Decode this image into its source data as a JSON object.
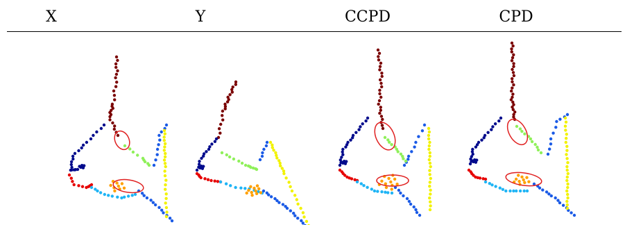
{
  "headers": [
    "X",
    "Y",
    "CCPD",
    "CPD"
  ],
  "colors": {
    "nose": "#7a0000",
    "upper_left": "#000a8c",
    "cyan": "#1eb4f5",
    "blue": "#1a5ae6",
    "yellow": "#f2f200",
    "lightgreen": "#8ff05a",
    "orange": "#ffa000",
    "red": "#e60000",
    "ellipse": "#e02020"
  }
}
